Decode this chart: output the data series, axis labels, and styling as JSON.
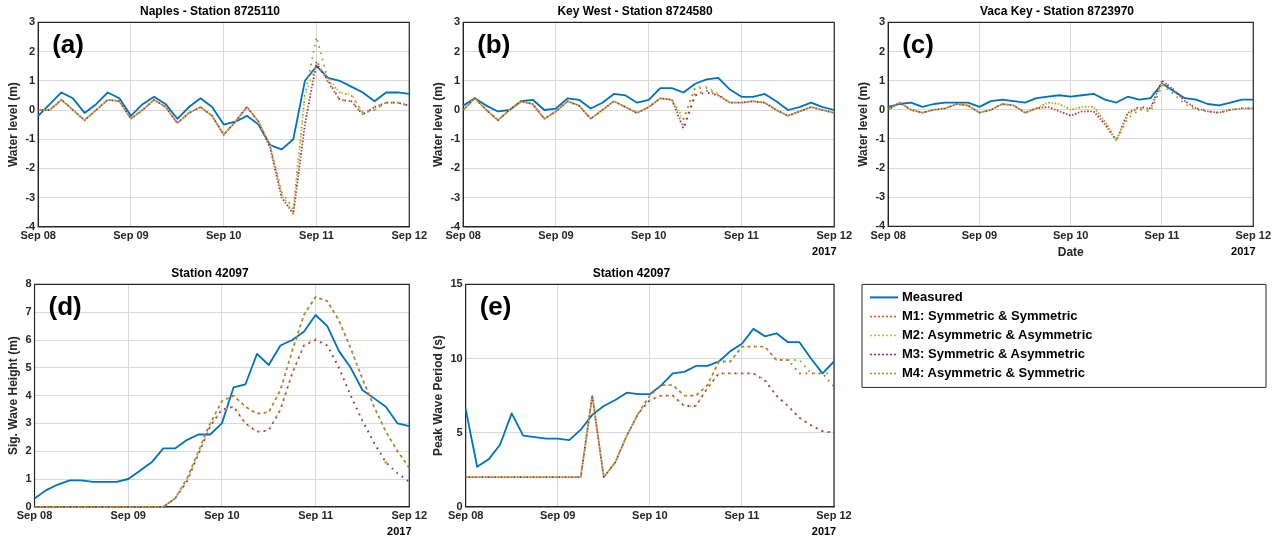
{
  "chart_data": [
    {
      "type": "line",
      "title": "Naples - Station 8725110",
      "ylabel": "Water level (m)",
      "annotations": [
        "(a)"
      ],
      "grid": true,
      "legend": false,
      "x": [
        "2017-09-08T00:00",
        "2017-09-08T03:00",
        "2017-09-08T06:00",
        "2017-09-08T09:00",
        "2017-09-08T12:00",
        "2017-09-08T15:00",
        "2017-09-08T18:00",
        "2017-09-08T21:00",
        "2017-09-09T00:00",
        "2017-09-09T03:00",
        "2017-09-09T06:00",
        "2017-09-09T09:00",
        "2017-09-09T12:00",
        "2017-09-09T15:00",
        "2017-09-09T18:00",
        "2017-09-09T21:00",
        "2017-09-10T00:00",
        "2017-09-10T03:00",
        "2017-09-10T06:00",
        "2017-09-10T09:00",
        "2017-09-10T12:00",
        "2017-09-10T15:00",
        "2017-09-10T18:00",
        "2017-09-10T21:00",
        "2017-09-11T00:00",
        "2017-09-11T03:00",
        "2017-09-11T06:00",
        "2017-09-11T09:00",
        "2017-09-11T12:00",
        "2017-09-11T15:00",
        "2017-09-11T18:00",
        "2017-09-11T21:00",
        "2017-09-12T00:00"
      ],
      "xlim": [
        "2017-09-08",
        "2017-09-12"
      ],
      "xticks": [
        {
          "value": "2017-09-08",
          "label": "Sep 08"
        },
        {
          "value": "2017-09-09",
          "label": "Sep 09"
        },
        {
          "value": "2017-09-10",
          "label": "Sep 10"
        },
        {
          "value": "2017-09-11",
          "label": "Sep 11"
        },
        {
          "value": "2017-09-12",
          "label": "Sep 12"
        }
      ],
      "ylim": [
        -4,
        3
      ],
      "yticks": [
        -4,
        -3,
        -2,
        -1,
        0,
        1,
        2,
        3
      ],
      "series": [
        {
          "color": "#0072bd",
          "line_style": "solid",
          "values": [
            -0.2,
            0.2,
            0.6,
            0.4,
            -0.1,
            0.2,
            0.6,
            0.4,
            -0.2,
            0.2,
            0.45,
            0.2,
            -0.3,
            0.1,
            0.4,
            0.1,
            -0.5,
            -0.4,
            -0.2,
            -0.5,
            -1.2,
            -1.35,
            -1.0,
            1.0,
            1.5,
            1.1,
            1.0,
            0.8,
            0.6,
            0.3,
            0.6,
            0.6,
            0.55
          ]
        },
        {
          "color": "#d95319",
          "line_style": "dotted",
          "values": [
            0,
            0,
            0.35,
            0,
            -0.35,
            0,
            0.35,
            0.3,
            -0.3,
            0,
            0.35,
            0.1,
            -0.45,
            -0.1,
            0.1,
            -0.2,
            -0.85,
            -0.4,
            0.1,
            -0.4,
            -1.3,
            -3.0,
            -3.55,
            -0.5,
            1.7,
            0.95,
            0.35,
            0.3,
            -0.15,
            0.1,
            0.25,
            0.25,
            0.15
          ]
        },
        {
          "color": "#edb120",
          "line_style": "dotted",
          "values": [
            0,
            0,
            0.35,
            0,
            -0.35,
            0,
            0.35,
            0.3,
            -0.3,
            0,
            0.35,
            0.1,
            -0.45,
            -0.1,
            0.1,
            -0.2,
            -0.85,
            -0.4,
            0.1,
            -0.4,
            -1.2,
            -2.9,
            -3.5,
            0.5,
            1.6,
            1.1,
            0.6,
            0.55,
            -0.1,
            0,
            0.25,
            0.25,
            0.15
          ]
        },
        {
          "color": "#7e2f8e",
          "line_style": "dotted",
          "values": [
            0,
            0,
            0.35,
            0,
            -0.35,
            0,
            0.35,
            0.3,
            -0.3,
            0,
            0.35,
            0.1,
            -0.45,
            -0.1,
            0.1,
            -0.2,
            -0.85,
            -0.4,
            0.1,
            -0.4,
            -1.3,
            -3.0,
            -3.55,
            -0.5,
            1.6,
            1.0,
            0.35,
            0.3,
            -0.15,
            0.1,
            0.25,
            0.25,
            0.15
          ]
        },
        {
          "color": "#77ac30",
          "line_style": "dotted",
          "values": [
            0,
            0,
            0.35,
            0,
            -0.35,
            0,
            0.35,
            0.3,
            -0.3,
            0,
            0.35,
            0.1,
            -0.45,
            -0.1,
            0.1,
            -0.2,
            -0.85,
            -0.4,
            0.1,
            -0.4,
            -1.2,
            -2.8,
            -3.4,
            0.5,
            2.5,
            1.0,
            0.6,
            0.5,
            -0.1,
            0,
            0.25,
            0.25,
            0.15
          ]
        }
      ]
    },
    {
      "type": "line",
      "title": "Key West - Station 8724580",
      "ylabel": "Water level (m)",
      "annotations": [
        "(b)",
        "2017"
      ],
      "grid": true,
      "legend": false,
      "x": [
        "2017-09-08T00:00",
        "2017-09-08T03:00",
        "2017-09-08T06:00",
        "2017-09-08T09:00",
        "2017-09-08T12:00",
        "2017-09-08T15:00",
        "2017-09-08T18:00",
        "2017-09-08T21:00",
        "2017-09-09T00:00",
        "2017-09-09T03:00",
        "2017-09-09T06:00",
        "2017-09-09T09:00",
        "2017-09-09T12:00",
        "2017-09-09T15:00",
        "2017-09-09T18:00",
        "2017-09-09T21:00",
        "2017-09-10T00:00",
        "2017-09-10T03:00",
        "2017-09-10T06:00",
        "2017-09-10T09:00",
        "2017-09-10T12:00",
        "2017-09-10T15:00",
        "2017-09-10T18:00",
        "2017-09-10T21:00",
        "2017-09-11T00:00",
        "2017-09-11T03:00",
        "2017-09-11T06:00",
        "2017-09-11T09:00",
        "2017-09-11T12:00",
        "2017-09-11T15:00",
        "2017-09-11T18:00",
        "2017-09-11T21:00",
        "2017-09-12T00:00"
      ],
      "xlim": [
        "2017-09-08",
        "2017-09-12"
      ],
      "xticks": [
        {
          "value": "2017-09-08",
          "label": "Sep 08"
        },
        {
          "value": "2017-09-09",
          "label": "Sep 09"
        },
        {
          "value": "2017-09-10",
          "label": "Sep 10"
        },
        {
          "value": "2017-09-11",
          "label": "Sep 11"
        },
        {
          "value": "2017-09-12",
          "label": "Sep 12"
        }
      ],
      "ylim": [
        -4,
        3
      ],
      "yticks": [
        -4,
        -3,
        -2,
        -1,
        0,
        1,
        2,
        3
      ],
      "series": [
        {
          "color": "#0072bd",
          "line_style": "solid",
          "values": [
            0.15,
            0.4,
            0.15,
            -0.05,
            0,
            0.3,
            0.35,
            0,
            0.05,
            0.4,
            0.35,
            0.05,
            0.25,
            0.55,
            0.5,
            0.25,
            0.35,
            0.75,
            0.75,
            0.6,
            0.9,
            1.05,
            1.1,
            0.7,
            0.45,
            0.45,
            0.55,
            0.3,
            0,
            0.1,
            0.25,
            0.1,
            0
          ]
        },
        {
          "color": "#d95319",
          "line_style": "dotted",
          "values": [
            0,
            0.4,
            0,
            -0.35,
            0,
            0.3,
            0.2,
            -0.3,
            -0.05,
            0.3,
            0.15,
            -0.3,
            0,
            0.3,
            0.1,
            -0.1,
            0.1,
            0.4,
            0.35,
            -0.6,
            0.55,
            0.65,
            0.5,
            0.25,
            0.25,
            0.3,
            0.25,
            0,
            -0.2,
            -0.05,
            0.1,
            0,
            -0.1
          ]
        },
        {
          "color": "#edb120",
          "line_style": "dotted",
          "values": [
            0,
            0.4,
            0,
            -0.35,
            0,
            0.3,
            0.2,
            -0.3,
            -0.05,
            0.3,
            0.15,
            -0.3,
            0,
            0.3,
            0.1,
            -0.1,
            0.1,
            0.4,
            0.35,
            -0.35,
            0.8,
            0.8,
            0.55,
            0.25,
            0.25,
            0.3,
            0.25,
            0,
            -0.2,
            -0.05,
            0.1,
            0,
            -0.1
          ]
        },
        {
          "color": "#7e2f8e",
          "line_style": "dotted",
          "values": [
            0,
            0.4,
            0,
            -0.35,
            0,
            0.3,
            0.2,
            -0.3,
            -0.05,
            0.3,
            0.15,
            -0.3,
            0,
            0.3,
            0.1,
            -0.1,
            0.1,
            0.4,
            0.35,
            -0.65,
            0.5,
            0.6,
            0.5,
            0.25,
            0.25,
            0.3,
            0.25,
            0,
            -0.2,
            -0.05,
            0.1,
            0,
            -0.1
          ]
        },
        {
          "color": "#77ac30",
          "line_style": "dotted",
          "values": [
            0,
            0.4,
            0,
            -0.35,
            0,
            0.3,
            0.2,
            -0.3,
            -0.05,
            0.3,
            0.15,
            -0.3,
            0,
            0.3,
            0.1,
            -0.1,
            0.1,
            0.4,
            0.35,
            -0.3,
            0.75,
            0.75,
            0.5,
            0.25,
            0.25,
            0.3,
            0.25,
            0,
            -0.2,
            -0.05,
            0.1,
            0,
            -0.1
          ]
        }
      ]
    },
    {
      "type": "line",
      "title": "Vaca Key - Station 8723970",
      "xlabel": "Date",
      "ylabel": "Water level (m)",
      "annotations": [
        "(c)",
        "2017"
      ],
      "grid": true,
      "legend": false,
      "x": [
        "2017-09-08T00:00",
        "2017-09-08T03:00",
        "2017-09-08T06:00",
        "2017-09-08T09:00",
        "2017-09-08T12:00",
        "2017-09-08T15:00",
        "2017-09-08T18:00",
        "2017-09-08T21:00",
        "2017-09-09T00:00",
        "2017-09-09T03:00",
        "2017-09-09T06:00",
        "2017-09-09T09:00",
        "2017-09-09T12:00",
        "2017-09-09T15:00",
        "2017-09-09T18:00",
        "2017-09-09T21:00",
        "2017-09-10T00:00",
        "2017-09-10T03:00",
        "2017-09-10T06:00",
        "2017-09-10T09:00",
        "2017-09-10T12:00",
        "2017-09-10T15:00",
        "2017-09-10T18:00",
        "2017-09-10T21:00",
        "2017-09-11T00:00",
        "2017-09-11T03:00",
        "2017-09-11T06:00",
        "2017-09-11T09:00",
        "2017-09-11T12:00",
        "2017-09-11T15:00",
        "2017-09-11T18:00",
        "2017-09-11T21:00",
        "2017-09-12T00:00"
      ],
      "xlim": [
        "2017-09-08",
        "2017-09-12"
      ],
      "xticks": [
        {
          "value": "2017-09-08",
          "label": "Sep 08"
        },
        {
          "value": "2017-09-09",
          "label": "Sep 09"
        },
        {
          "value": "2017-09-10",
          "label": "Sep 10"
        },
        {
          "value": "2017-09-11",
          "label": "Sep 11"
        },
        {
          "value": "2017-09-12",
          "label": "Sep 12"
        }
      ],
      "ylim": [
        -4,
        3
      ],
      "yticks": [
        -4,
        -3,
        -2,
        -1,
        0,
        1,
        2,
        3
      ],
      "series": [
        {
          "color": "#0072bd",
          "line_style": "solid",
          "values": [
            0.1,
            0.2,
            0.25,
            0.1,
            0.2,
            0.25,
            0.25,
            0.25,
            0.1,
            0.3,
            0.35,
            0.3,
            0.25,
            0.4,
            0.45,
            0.5,
            0.45,
            0.5,
            0.55,
            0.35,
            0.25,
            0.45,
            0.35,
            0.4,
            0.9,
            0.65,
            0.4,
            0.35,
            0.2,
            0.15,
            0.25,
            0.35,
            0.35
          ]
        },
        {
          "color": "#d95319",
          "line_style": "dotted",
          "values": [
            0,
            0.25,
            0,
            -0.1,
            0,
            0.05,
            0.2,
            0.15,
            -0.1,
            0,
            0.2,
            0.15,
            -0.1,
            0.05,
            0.1,
            -0.05,
            -0.2,
            -0.05,
            -0.05,
            -0.5,
            -1.05,
            -0.1,
            0.05,
            0.05,
            1.0,
            0.7,
            0.3,
            0.05,
            -0.05,
            -0.1,
            0,
            0.05,
            0.05
          ]
        },
        {
          "color": "#edb120",
          "line_style": "dotted",
          "values": [
            0,
            0.25,
            0,
            -0.1,
            0,
            0.05,
            0.2,
            0.15,
            -0.1,
            0,
            0.2,
            0.15,
            -0.1,
            0.05,
            0.25,
            0.2,
            0,
            0.1,
            0.1,
            -0.4,
            -1.05,
            -0.2,
            0.1,
            -0.05,
            0.85,
            null,
            null,
            null,
            null,
            null,
            null,
            null,
            null
          ]
        },
        {
          "color": "#7e2f8e",
          "line_style": "dotted",
          "values": [
            0,
            0.25,
            0,
            -0.1,
            0,
            0.05,
            0.2,
            0.15,
            -0.1,
            0,
            0.2,
            0.15,
            -0.1,
            0.05,
            0.1,
            -0.05,
            -0.2,
            -0.05,
            -0.05,
            -0.5,
            -1.05,
            -0.1,
            0.1,
            0.05,
            1.0,
            0.7,
            0.3,
            0.05,
            -0.05,
            -0.1,
            0,
            0.05,
            0.05
          ]
        },
        {
          "color": "#77ac30",
          "line_style": "dotted",
          "values": [
            0,
            0.25,
            0,
            -0.1,
            0,
            0.05,
            0.2,
            0.15,
            -0.1,
            0,
            0.2,
            0.15,
            -0.1,
            0.05,
            0.25,
            0.2,
            0,
            0.1,
            0.1,
            -0.4,
            -1.05,
            -0.3,
            0,
            -0.05,
            0.85,
            0.55,
            0.2,
            0,
            -0.05,
            -0.1,
            0,
            0.05,
            0.05
          ]
        }
      ]
    },
    {
      "type": "line",
      "title": "Station 42097",
      "ylabel": "Sig. Wave Height (m)",
      "annotations": [
        "(d)",
        "2017"
      ],
      "grid": true,
      "legend": false,
      "x": [
        "2017-09-08T00:00",
        "2017-09-08T03:00",
        "2017-09-08T06:00",
        "2017-09-08T09:00",
        "2017-09-08T12:00",
        "2017-09-08T15:00",
        "2017-09-08T18:00",
        "2017-09-08T21:00",
        "2017-09-09T00:00",
        "2017-09-09T03:00",
        "2017-09-09T06:00",
        "2017-09-09T09:00",
        "2017-09-09T12:00",
        "2017-09-09T15:00",
        "2017-09-09T18:00",
        "2017-09-09T21:00",
        "2017-09-10T00:00",
        "2017-09-10T03:00",
        "2017-09-10T06:00",
        "2017-09-10T09:00",
        "2017-09-10T12:00",
        "2017-09-10T15:00",
        "2017-09-10T18:00",
        "2017-09-10T21:00",
        "2017-09-11T00:00",
        "2017-09-11T03:00",
        "2017-09-11T06:00",
        "2017-09-11T09:00",
        "2017-09-11T12:00",
        "2017-09-11T15:00",
        "2017-09-11T18:00",
        "2017-09-11T21:00",
        "2017-09-12T00:00"
      ],
      "xlim": [
        "2017-09-08",
        "2017-09-12"
      ],
      "xticks": [
        {
          "value": "2017-09-08",
          "label": "Sep 08"
        },
        {
          "value": "2017-09-09",
          "label": "Sep 09"
        },
        {
          "value": "2017-09-10",
          "label": "Sep 10"
        },
        {
          "value": "2017-09-11",
          "label": "Sep 11"
        },
        {
          "value": "2017-09-12",
          "label": "Sep 12"
        }
      ],
      "ylim": [
        0,
        8
      ],
      "yticks": [
        0,
        1,
        2,
        3,
        4,
        5,
        6,
        7,
        8
      ],
      "series": [
        {
          "color": "#0072bd",
          "line_style": "solid",
          "values": [
            0.3,
            0.6,
            0.8,
            0.95,
            0.95,
            0.9,
            0.9,
            0.9,
            1.0,
            1.3,
            1.6,
            2.1,
            2.1,
            2.4,
            2.6,
            2.6,
            3.0,
            4.3,
            4.4,
            5.5,
            5.1,
            5.8,
            6.0,
            6.3,
            6.9,
            6.5,
            5.6,
            5.0,
            4.2,
            3.9,
            3.6,
            3.0,
            2.9
          ]
        },
        {
          "color": "#d95319",
          "line_style": "dotted",
          "values": [
            0,
            0,
            0,
            0,
            0,
            0,
            0,
            0,
            0,
            0,
            0,
            0,
            0.3,
            1.0,
            2.0,
            3.0,
            3.8,
            4.0,
            3.6,
            3.35,
            3.4,
            4.2,
            5.6,
            6.9,
            7.55,
            7.4,
            6.7,
            5.7,
            4.6,
            3.6,
            2.7,
            2.0,
            1.4
          ]
        },
        {
          "color": "#edb120",
          "line_style": "dotted",
          "values": [
            0,
            0,
            0,
            0,
            0,
            0,
            0,
            0,
            0,
            0,
            0,
            0,
            0.3,
            0.9,
            1.9,
            2.9,
            3.5,
            3.6,
            3.0,
            2.7,
            2.75,
            3.5,
            4.8,
            5.8,
            6.05,
            5.8,
            5.0,
            4.0,
            3.1,
            2.3,
            1.6,
            null,
            null
          ]
        },
        {
          "color": "#7e2f8e",
          "line_style": "dotted",
          "values": [
            0,
            0,
            0,
            0,
            0,
            0,
            0,
            0,
            0,
            0,
            0,
            0,
            0.3,
            0.9,
            1.9,
            2.9,
            3.5,
            3.6,
            3.0,
            2.7,
            2.75,
            3.5,
            4.8,
            5.8,
            6.0,
            5.8,
            5.0,
            4.0,
            3.1,
            2.3,
            1.6,
            1.2,
            0.9
          ]
        },
        {
          "color": "#77ac30",
          "line_style": "dotted",
          "values": [
            0,
            0,
            0,
            0,
            0,
            0,
            0,
            0,
            0,
            0,
            0,
            0,
            0.3,
            1.0,
            2.0,
            3.0,
            3.8,
            4.0,
            3.6,
            3.35,
            3.4,
            4.2,
            5.6,
            6.9,
            7.55,
            7.4,
            6.7,
            5.7,
            4.6,
            3.6,
            2.7,
            2.0,
            1.4
          ]
        }
      ]
    },
    {
      "type": "line",
      "title": "Station 42097",
      "ylabel": "Peak Wave Period (s)",
      "annotations": [
        "(e)",
        "2017"
      ],
      "grid": true,
      "legend": "right",
      "x": [
        "2017-09-08T00:00",
        "2017-09-08T03:00",
        "2017-09-08T06:00",
        "2017-09-08T09:00",
        "2017-09-08T12:00",
        "2017-09-08T15:00",
        "2017-09-08T18:00",
        "2017-09-08T21:00",
        "2017-09-09T00:00",
        "2017-09-09T03:00",
        "2017-09-09T06:00",
        "2017-09-09T09:00",
        "2017-09-09T12:00",
        "2017-09-09T15:00",
        "2017-09-09T18:00",
        "2017-09-09T21:00",
        "2017-09-10T00:00",
        "2017-09-10T03:00",
        "2017-09-10T06:00",
        "2017-09-10T09:00",
        "2017-09-10T12:00",
        "2017-09-10T15:00",
        "2017-09-10T18:00",
        "2017-09-10T21:00",
        "2017-09-11T00:00",
        "2017-09-11T03:00",
        "2017-09-11T06:00",
        "2017-09-11T09:00",
        "2017-09-11T12:00",
        "2017-09-11T15:00",
        "2017-09-11T18:00",
        "2017-09-11T21:00",
        "2017-09-12T00:00"
      ],
      "xlim": [
        "2017-09-08",
        "2017-09-12"
      ],
      "xticks": [
        {
          "value": "2017-09-08",
          "label": "Sep 08"
        },
        {
          "value": "2017-09-09",
          "label": "Sep 09"
        },
        {
          "value": "2017-09-10",
          "label": "Sep 10"
        },
        {
          "value": "2017-09-11",
          "label": "Sep 11"
        },
        {
          "value": "2017-09-12",
          "label": "Sep 12"
        }
      ],
      "ylim": [
        0,
        15
      ],
      "yticks": [
        0,
        5,
        10,
        15
      ],
      "series": [
        {
          "name": "Measured",
          "color": "#0072bd",
          "line_style": "solid",
          "values": [
            6.6,
            2.7,
            3.2,
            4.2,
            6.3,
            4.8,
            4.7,
            4.6,
            4.6,
            4.5,
            5.2,
            6.2,
            6.8,
            7.2,
            7.7,
            7.6,
            7.6,
            8.2,
            9.0,
            9.1,
            9.5,
            9.5,
            9.8,
            10.5,
            11.0,
            12.0,
            11.5,
            11.7,
            11.1,
            11.1,
            10.0,
            9.0,
            9.8
          ]
        },
        {
          "name": "M1: Symmetric & Symmetric",
          "color": "#d95319",
          "line_style": "dotted",
          "values": [
            2,
            2,
            2,
            2,
            2,
            2,
            2,
            2,
            2,
            2,
            2,
            7.5,
            2.0,
            3.0,
            4.8,
            6.3,
            7.5,
            8.2,
            8.2,
            7.5,
            7.5,
            8.2,
            9.8,
            9.8,
            10.8,
            10.8,
            10.8,
            9.9,
            9.9,
            9.0,
            9.0,
            9.0,
            8.1
          ]
        },
        {
          "name": "M2: Asymmetric & Asymmetric",
          "color": "#edb120",
          "line_style": "dotted",
          "values": [
            2,
            2,
            2,
            2,
            2,
            2,
            2,
            2,
            2,
            2,
            2,
            7.5,
            2.0,
            3.0,
            4.8,
            6.3,
            7.2,
            7.5,
            7.5,
            6.8,
            6.8,
            8.0,
            9.0,
            9.0,
            9.0,
            9.0,
            8.6,
            7.5,
            6.8,
            6.0,
            5.5,
            5.1,
            5.0
          ]
        },
        {
          "name": "M3: Symmetric & Asymmetric",
          "color": "#7e2f8e",
          "line_style": "dotted",
          "values": [
            2,
            2,
            2,
            2,
            2,
            2,
            2,
            2,
            2,
            2,
            2,
            7.5,
            2.0,
            3.0,
            4.8,
            6.3,
            7.2,
            7.5,
            7.5,
            6.8,
            6.8,
            8.0,
            9.0,
            9.0,
            9.0,
            9.0,
            8.5,
            7.5,
            6.8,
            6.0,
            5.5,
            5.1,
            5.0
          ]
        },
        {
          "name": "M4: Asymmetric & Symmetric",
          "color": "#77ac30",
          "line_style": "dotted",
          "values": [
            2,
            2,
            2,
            2,
            2,
            2,
            2,
            2,
            2,
            2,
            2,
            7.5,
            2.0,
            3.0,
            4.8,
            6.3,
            7.5,
            8.2,
            8.2,
            7.5,
            7.5,
            8.2,
            9.8,
            9.8,
            10.8,
            10.8,
            10.8,
            9.9,
            9.9,
            9.9,
            9.0,
            9.0,
            9.0
          ]
        }
      ]
    }
  ]
}
